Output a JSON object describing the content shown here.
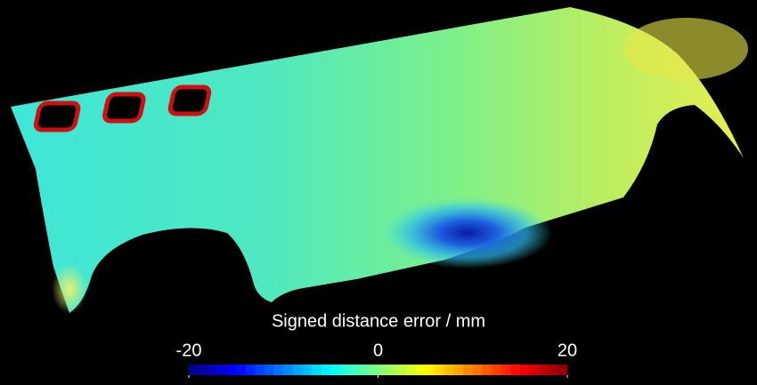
{
  "colorbar": {
    "label": "Signed distance error / mm",
    "range": [
      -20,
      20
    ],
    "ticks": [
      -20,
      0,
      20
    ],
    "colormap": "jet"
  }
}
